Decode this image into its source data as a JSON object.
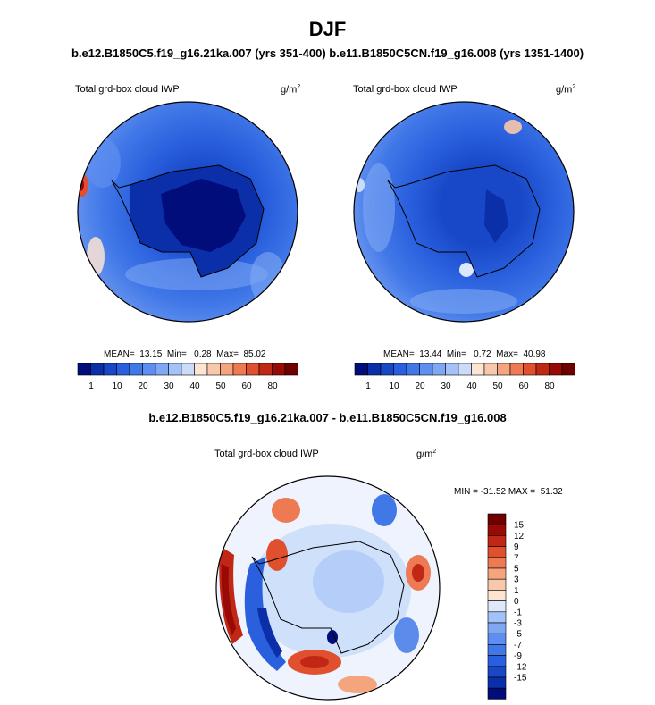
{
  "title": "DJF",
  "subtitle": "b.e12.B1850C5.f19_g16.21ka.007 (yrs 351-400) b.e11.B1850C5CN.f19_g16.008 (yrs 1351-1400)",
  "diff_title": "b.e12.B1850C5.f19_g16.21ka.007 - b.e11.B1850C5CN.f19_g16.008",
  "colors": {
    "seq": [
      "#000d7a",
      "#0b2ea9",
      "#1848c8",
      "#2a60dd",
      "#4178e8",
      "#5e8ff0",
      "#7ea8f4",
      "#a3c2f8",
      "#cbdcfb",
      "#fde4d3",
      "#f8c8ac",
      "#f4a57e",
      "#ee7a54",
      "#e0502f",
      "#c02714",
      "#970a05",
      "#6e0000"
    ],
    "div": [
      "#000d7a",
      "#0b2ea9",
      "#1848c8",
      "#2a60dd",
      "#4178e8",
      "#5e8ff0",
      "#7ea8f4",
      "#a3c2f8",
      "#dde8fc",
      "#fde4d3",
      "#f8c8ac",
      "#f4a57e",
      "#ee7a54",
      "#e0502f",
      "#c02714",
      "#970a05",
      "#6e0000"
    ]
  },
  "chart_data": [
    {
      "type": "heatmap",
      "panel": "left",
      "variable": "Total grd-box cloud IWP",
      "units": "g/m",
      "units_exp": "2",
      "projection": "polar stereographic, south pole",
      "stats_text": "MEAN=  13.15  Min=   0.28  Max=  85.02",
      "mean": 13.15,
      "min": 0.28,
      "max": 85.02,
      "colorbar_ticks": [
        "1",
        "10",
        "20",
        "30",
        "40",
        "50",
        "60",
        "80"
      ]
    },
    {
      "type": "heatmap",
      "panel": "right",
      "variable": "Total grd-box cloud IWP",
      "units": "g/m",
      "units_exp": "2",
      "projection": "polar stereographic, south pole",
      "stats_text": "MEAN=  13.44  Min=   0.72  Max=  40.98",
      "mean": 13.44,
      "min": 0.72,
      "max": 40.98,
      "colorbar_ticks": [
        "1",
        "10",
        "20",
        "30",
        "40",
        "50",
        "60",
        "80"
      ]
    },
    {
      "type": "heatmap",
      "panel": "difference",
      "variable": "Total grd-box cloud IWP",
      "units": "g/m",
      "units_exp": "2",
      "projection": "polar stereographic, south pole",
      "stats_text": "MIN = -31.52 MAX =  51.32",
      "min": -31.52,
      "max": 51.32,
      "colorbar_ticks": [
        "15",
        "12",
        "9",
        "7",
        "5",
        "3",
        "1",
        "0",
        "-1",
        "-3",
        "-5",
        "-7",
        "-9",
        "-12",
        "-15"
      ]
    }
  ]
}
